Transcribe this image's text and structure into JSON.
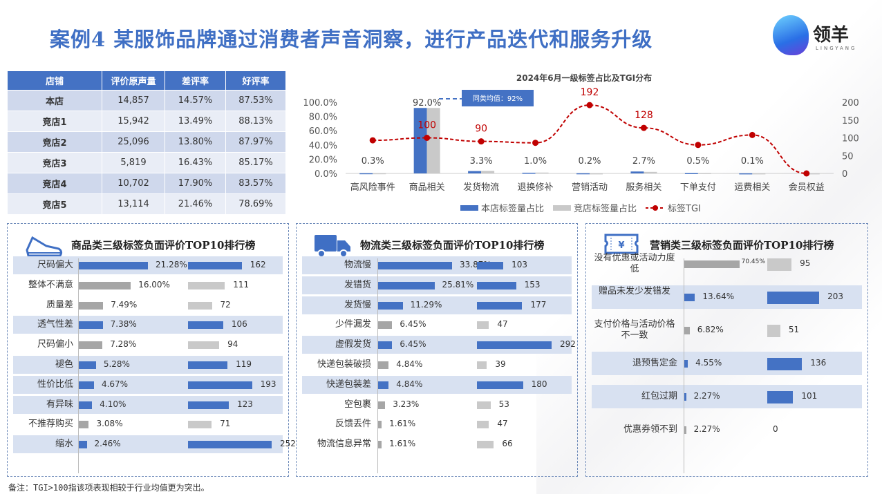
{
  "title": "案例4  某服饰品牌通过消费者声音洞察，进行产品迭代和服务升级",
  "logo": {
    "name": "领羊",
    "sub": "LINGYANG"
  },
  "table": {
    "headers": [
      "店铺",
      "评价原声量",
      "差评率",
      "好评率"
    ],
    "rows": [
      [
        "本店",
        "14,857",
        "14.57%",
        "87.53%"
      ],
      [
        "竞店1",
        "15,942",
        "13.49%",
        "88.13%"
      ],
      [
        "竞店2",
        "25,096",
        "13.80%",
        "87.97%"
      ],
      [
        "竞店3",
        "5,819",
        "16.43%",
        "85.17%"
      ],
      [
        "竞店4",
        "10,702",
        "17.90%",
        "83.57%"
      ],
      [
        "竞店5",
        "13,114",
        "21.46%",
        "78.69%"
      ]
    ]
  },
  "chart_data": {
    "type": "bar+line",
    "title": "2024年6月一级标签占比及TGI分布",
    "categories": [
      "高风险事件",
      "商品相关",
      "发货物流",
      "退换修补",
      "营销活动",
      "服务相关",
      "下单支付",
      "运费相关",
      "会员权益"
    ],
    "series": [
      {
        "name": "本店标签量占比",
        "values": [
          0.3,
          92.0,
          3.3,
          1.0,
          0.2,
          2.7,
          0.5,
          0.1,
          0
        ],
        "labels": [
          "0.3%",
          "92.0%",
          "3.3%",
          "1.0%",
          "0.2%",
          "2.7%",
          "0.5%",
          "0.1%",
          ""
        ]
      },
      {
        "name": "竞店标签量占比",
        "values": [
          0.3,
          92.0,
          3.6,
          1.2,
          0.1,
          2.1,
          0.6,
          0.1,
          0.1
        ]
      },
      {
        "name": "标签TGI",
        "values": [
          93,
          100,
          90,
          86,
          192,
          128,
          80,
          108,
          0
        ],
        "labels": [
          "",
          "100",
          "90",
          "",
          "192",
          "128",
          "",
          "",
          ""
        ]
      }
    ],
    "yleft": {
      "ticks": [
        "100.0%",
        "80.0%",
        "60.0%",
        "40.0%",
        "20.0%",
        "0.0%"
      ],
      "range": [
        0,
        100
      ]
    },
    "yright": {
      "ticks": [
        "200",
        "150",
        "100",
        "50",
        "0"
      ],
      "range": [
        0,
        200
      ]
    },
    "annotation": "同类均值：92%",
    "legend_position": "bottom"
  },
  "panels": [
    {
      "title": "商品类三级标签负面评价TOP10排行榜",
      "icon": "shoe-icon",
      "rows": [
        {
          "label": "尺码偏大",
          "pct": 21.28,
          "pct_label": "21.28%",
          "tgi": 162,
          "hl": true
        },
        {
          "label": "整体不满意",
          "pct": 16.0,
          "pct_label": "16.00%",
          "tgi": 111,
          "hl": false
        },
        {
          "label": "质量差",
          "pct": 7.49,
          "pct_label": "7.49%",
          "tgi": 72,
          "hl": false
        },
        {
          "label": "透气性差",
          "pct": 7.38,
          "pct_label": "7.38%",
          "tgi": 106,
          "hl": true
        },
        {
          "label": "尺码偏小",
          "pct": 7.28,
          "pct_label": "7.28%",
          "tgi": 94,
          "hl": false
        },
        {
          "label": "褪色",
          "pct": 5.28,
          "pct_label": "5.28%",
          "tgi": 119,
          "hl": true
        },
        {
          "label": "性价比低",
          "pct": 4.67,
          "pct_label": "4.67%",
          "tgi": 193,
          "hl": true
        },
        {
          "label": "有异味",
          "pct": 4.1,
          "pct_label": "4.10%",
          "tgi": 123,
          "hl": true
        },
        {
          "label": "不推荐购买",
          "pct": 3.08,
          "pct_label": "3.08%",
          "tgi": 71,
          "hl": false
        },
        {
          "label": "缩水",
          "pct": 2.46,
          "pct_label": "2.46%",
          "tgi": 252,
          "hl": true
        }
      ]
    },
    {
      "title": "物流类三级标签负面评价TOP10排行榜",
      "icon": "truck-icon",
      "rows": [
        {
          "label": "物流慢",
          "pct": 33.87,
          "pct_label": "33.87%",
          "tgi": 103,
          "hl": true
        },
        {
          "label": "发错货",
          "pct": 25.81,
          "pct_label": "25.81%",
          "tgi": 153,
          "hl": true
        },
        {
          "label": "发货慢",
          "pct": 11.29,
          "pct_label": "11.29%",
          "tgi": 177,
          "hl": true
        },
        {
          "label": "少件漏发",
          "pct": 6.45,
          "pct_label": "6.45%",
          "tgi": 47,
          "hl": false
        },
        {
          "label": "虚假发货",
          "pct": 6.45,
          "pct_label": "6.45%",
          "tgi": 292,
          "hl": true
        },
        {
          "label": "快递包装破损",
          "pct": 4.84,
          "pct_label": "4.84%",
          "tgi": 39,
          "hl": false
        },
        {
          "label": "快递包装差",
          "pct": 4.84,
          "pct_label": "4.84%",
          "tgi": 180,
          "hl": true
        },
        {
          "label": "空包裹",
          "pct": 3.23,
          "pct_label": "3.23%",
          "tgi": 53,
          "hl": false
        },
        {
          "label": "反馈丢件",
          "pct": 1.61,
          "pct_label": "1.61%",
          "tgi": 47,
          "hl": false
        },
        {
          "label": "物流信息异常",
          "pct": 1.61,
          "pct_label": "1.61%",
          "tgi": 66,
          "hl": false
        }
      ]
    },
    {
      "title": "营销类三级标签负面评价TOP10排行榜",
      "icon": "ticket-icon",
      "rows": [
        {
          "label": "没有优惠或活动力度低",
          "pct": 70.45,
          "pct_label": "70.45%",
          "tgi": 95,
          "hl": false
        },
        {
          "label": "赠品未发少发错发",
          "pct": 13.64,
          "pct_label": "13.64%",
          "tgi": 203,
          "hl": true
        },
        {
          "label": "支付价格与活动价格不一致",
          "pct": 6.82,
          "pct_label": "6.82%",
          "tgi": 51,
          "hl": false
        },
        {
          "label": "退预售定金",
          "pct": 4.55,
          "pct_label": "4.55%",
          "tgi": 136,
          "hl": true
        },
        {
          "label": "红包过期",
          "pct": 2.27,
          "pct_label": "2.27%",
          "tgi": 101,
          "hl": true
        },
        {
          "label": "优惠券领不到",
          "pct": 2.27,
          "pct_label": "2.27%",
          "tgi": 0,
          "hl": false
        }
      ]
    }
  ],
  "note": "备注：TGI>100指该项表现相较于行业均值更为突出。",
  "colors": {
    "blue": "#4472c4",
    "gray": "#c9c9c9",
    "red": "#c00000",
    "highlight": "#d8e1f1"
  }
}
